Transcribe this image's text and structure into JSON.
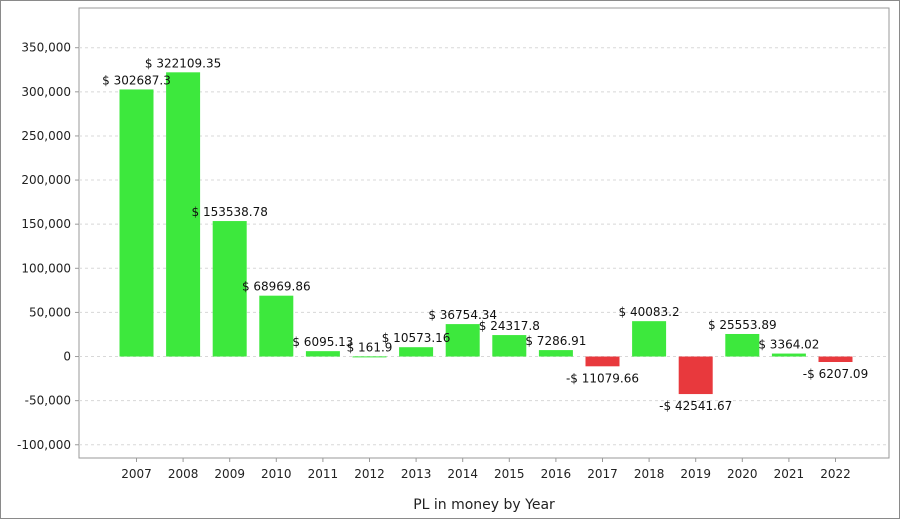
{
  "chart_data": {
    "type": "bar",
    "title": "",
    "xlabel": "PL in money by Year",
    "ylabel": "",
    "categories": [
      "2007",
      "2008",
      "2009",
      "2010",
      "2011",
      "2012",
      "2013",
      "2014",
      "2015",
      "2016",
      "2017",
      "2018",
      "2019",
      "2020",
      "2021",
      "2022"
    ],
    "values": [
      302687.3,
      322109.35,
      153538.78,
      68969.86,
      6095.13,
      161.9,
      10573.16,
      36754.34,
      24317.8,
      7286.91,
      -11079.66,
      40083.2,
      -42541.67,
      25553.89,
      3364.02,
      -6207.09
    ],
    "data_labels": [
      "$ 302687.3",
      "$ 322109.35",
      "$ 153538.78",
      "$ 68969.86",
      "$ 6095.13",
      "$ 161.9",
      "$ 10573.16",
      "$ 36754.34",
      "$ 24317.8",
      "$ 7286.91",
      "-$ 11079.66",
      "$ 40083.2",
      "-$ 42541.67",
      "$ 25553.89",
      "$ 3364.02",
      "-$ 6207.09"
    ],
    "y_ticks": [
      -100000,
      -50000,
      0,
      50000,
      100000,
      150000,
      200000,
      250000,
      300000,
      350000
    ],
    "y_tick_labels": [
      "-100,000",
      "-50,000",
      "0",
      "50,000",
      "100,000",
      "150,000",
      "200,000",
      "250,000",
      "300,000",
      "350,000"
    ],
    "ylim": [
      -115000,
      395000
    ],
    "grid": "horizontal-dashed",
    "legend": "none",
    "colors": {
      "positive": "#3de83d",
      "negative": "#e8393d",
      "grid": "#d8d8d8",
      "axis": "#9a9a9a"
    }
  }
}
